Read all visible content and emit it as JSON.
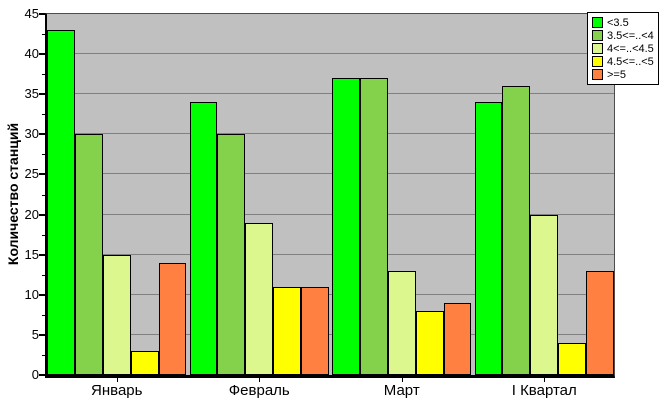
{
  "chart_data": {
    "type": "bar",
    "title": "",
    "xlabel": "",
    "ylabel": "Количество станций",
    "categories": [
      "Январь",
      "Февраль",
      "Март",
      "I Квартал"
    ],
    "series": [
      {
        "name": "<3.5",
        "color": "#00FF00",
        "values": [
          43,
          34,
          37,
          34
        ]
      },
      {
        "name": "3.5<=..<4",
        "color": "#84D24B",
        "values": [
          30,
          30,
          37,
          36
        ]
      },
      {
        "name": "4<=..<4.5",
        "color": "#DDF78F",
        "values": [
          15,
          19,
          13,
          20
        ]
      },
      {
        "name": "4.5<=..<5",
        "color": "#FFFF00",
        "values": [
          3,
          11,
          8,
          4
        ]
      },
      {
        "name": ">=5",
        "color": "#FF8040",
        "values": [
          14,
          11,
          9,
          13
        ]
      }
    ],
    "ylim": [
      0,
      45
    ],
    "yticks": [
      0,
      5,
      10,
      15,
      20,
      25,
      30,
      35,
      40,
      45
    ],
    "minor_tick_step": 2.5,
    "grid": true,
    "legend_position": "top-right",
    "colors": {
      "plot_background": "#C0C0C0",
      "gridline": "#808080",
      "axis": "#000000",
      "page_background": "#FFFFFF"
    }
  }
}
